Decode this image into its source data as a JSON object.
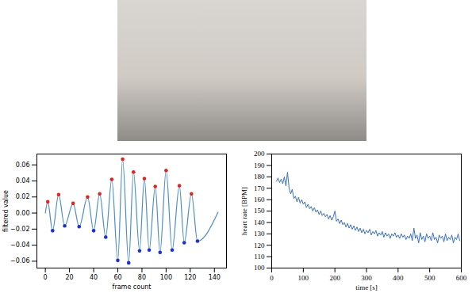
{
  "chart_data": [
    {
      "type": "line",
      "x_label": "frame count",
      "y_label": "filtered value",
      "color": "#4a8ec4",
      "x": [
        0,
        2,
        6,
        11,
        16,
        23,
        28,
        35,
        40,
        45,
        50,
        55,
        60,
        64,
        69,
        73,
        78,
        82,
        86,
        91,
        95,
        100,
        105,
        111,
        115,
        121,
        126,
        143
      ],
      "values": [
        0.0,
        0.014,
        -0.022,
        0.023,
        -0.016,
        0.012,
        -0.017,
        0.02,
        -0.022,
        0.024,
        -0.03,
        0.042,
        -0.059,
        0.067,
        -0.062,
        0.051,
        -0.047,
        0.043,
        -0.046,
        0.033,
        -0.049,
        0.053,
        -0.046,
        0.034,
        -0.037,
        0.024,
        -0.035,
        0.001
      ],
      "peaks": {
        "color": "#e8201c",
        "marker": "o",
        "x": [
          2,
          11,
          23,
          35,
          45,
          55,
          64,
          73,
          82,
          91,
          100,
          111,
          121
        ],
        "values": [
          0.014,
          0.023,
          0.012,
          0.02,
          0.024,
          0.042,
          0.067,
          0.051,
          0.043,
          0.033,
          0.053,
          0.034,
          0.024
        ]
      },
      "troughs": {
        "color": "#1a2fe0",
        "marker": "o",
        "x": [
          6,
          16,
          28,
          40,
          50,
          60,
          69,
          78,
          86,
          95,
          105,
          115,
          126
        ],
        "values": [
          -0.022,
          -0.016,
          -0.017,
          -0.022,
          -0.03,
          -0.059,
          -0.062,
          -0.047,
          -0.046,
          -0.049,
          -0.046,
          -0.037,
          -0.035
        ]
      },
      "xlim": [
        -7,
        150
      ],
      "xticks": [
        0,
        20,
        40,
        60,
        80,
        100,
        120,
        140
      ],
      "ylim": [
        -0.0685,
        0.0735
      ],
      "yticks": [
        {
          "value": -0.06,
          "label": "−0.06"
        },
        {
          "value": -0.04,
          "label": "−0.04"
        },
        {
          "value": -0.02,
          "label": "−0.02"
        },
        {
          "value": 0,
          "label": "0.00"
        },
        0.02,
        0.04,
        0.06
      ],
      "grid": false
    },
    {
      "type": "line",
      "x_label": "time [s]",
      "y_label": "heart rate [BPM]",
      "color": "#3a6fc4",
      "x": [
        15,
        20,
        25,
        30,
        35,
        40,
        45,
        50,
        55,
        60,
        65,
        70,
        75,
        80,
        85,
        90,
        95,
        100,
        105,
        110,
        115,
        120,
        125,
        130,
        135,
        140,
        145,
        150,
        155,
        160,
        165,
        170,
        175,
        180,
        185,
        190,
        195,
        200,
        205,
        210,
        215,
        220,
        225,
        230,
        235,
        240,
        245,
        250,
        255,
        260,
        265,
        270,
        275,
        280,
        285,
        290,
        295,
        300,
        305,
        310,
        315,
        320,
        325,
        330,
        335,
        340,
        345,
        350,
        355,
        360,
        365,
        370,
        375,
        380,
        385,
        390,
        395,
        400,
        405,
        410,
        415,
        420,
        425,
        430,
        435,
        440,
        445,
        450,
        455,
        460,
        465,
        470,
        475,
        480,
        485,
        490,
        495,
        500,
        505,
        510,
        515,
        520,
        525,
        530,
        535,
        540,
        545,
        550,
        555,
        560,
        565,
        570,
        575,
        580,
        585,
        590,
        595
      ],
      "values": [
        176,
        179,
        175,
        178,
        174,
        180,
        172,
        184,
        170,
        165,
        169,
        161,
        163,
        158,
        162,
        157,
        160,
        156,
        158,
        153,
        156,
        152,
        154,
        150,
        153,
        149,
        151,
        147,
        150,
        146,
        148,
        145,
        147,
        143,
        146,
        142,
        145,
        150,
        141,
        143,
        139,
        142,
        138,
        140,
        136,
        139,
        135,
        138,
        134,
        137,
        133,
        136,
        132,
        135,
        131,
        134,
        130,
        133,
        131,
        134,
        129,
        132,
        130,
        133,
        128,
        131,
        129,
        132,
        127,
        131,
        128,
        130,
        126,
        130,
        128,
        131,
        127,
        129,
        126,
        130,
        127,
        129,
        125,
        128,
        126,
        130,
        124,
        135,
        126,
        129,
        122,
        131,
        125,
        128,
        123,
        130,
        126,
        128,
        124,
        131,
        125,
        127,
        122,
        129,
        126,
        128,
        123,
        130,
        124,
        127,
        125,
        129,
        122,
        127,
        125,
        130,
        124
      ],
      "xlim": [
        0,
        600
      ],
      "xticks": [
        0,
        100,
        200,
        300,
        400,
        500,
        600
      ],
      "ylim": [
        100,
        200
      ],
      "yticks": [
        100,
        110,
        120,
        130,
        140,
        150,
        160,
        170,
        180,
        190,
        200
      ],
      "grid": false
    }
  ]
}
